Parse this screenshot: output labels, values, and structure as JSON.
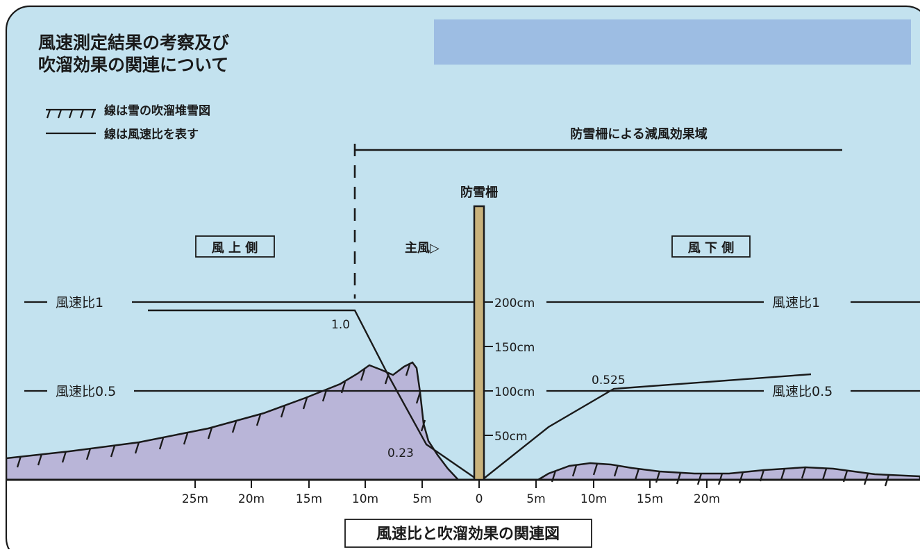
{
  "title_line1": "風速測定結果の考察及び",
  "title_line2": "吹溜効果の関連について",
  "legend": {
    "hatch_label": "線は雪の吹溜堆雪図",
    "line_label": "線は風速比を表す"
  },
  "effect_zone_label": "防雪柵による減風効果域",
  "fence_label": "防雪柵",
  "main_wind_label": "主風▷",
  "upwind_label": "風 上 側",
  "downwind_label": "風 下 側",
  "ratio1_label": "風速比1",
  "ratio05_label": "風速比0.5",
  "height_ticks": [
    "200cm",
    "150cm",
    "100cm",
    "50cm"
  ],
  "value_labels": {
    "v1": "1.0",
    "v2": "0.23",
    "v3": "0.525"
  },
  "distance_ticks": [
    "25m",
    "20m",
    "15m",
    "10m",
    "5m",
    "0",
    "5m",
    "10m",
    "15m",
    "20m"
  ],
  "caption": "風速比と吹溜効果の関連図",
  "colors": {
    "background": "#c3e2ef",
    "snow": "#b9b5d8",
    "fence": "#c8b27c",
    "banner": "#9dbde3",
    "line": "#1a1a1a"
  }
}
